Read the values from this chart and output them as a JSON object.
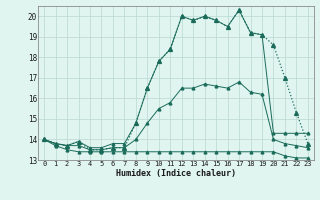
{
  "xlabel": "Humidex (Indice chaleur)",
  "x_hours": [
    0,
    1,
    2,
    3,
    4,
    5,
    6,
    7,
    8,
    9,
    10,
    11,
    12,
    13,
    14,
    15,
    16,
    17,
    18,
    19,
    20,
    21,
    22,
    23
  ],
  "main_line": [
    14.0,
    13.8,
    13.7,
    13.9,
    13.5,
    13.5,
    13.6,
    13.6,
    14.8,
    16.5,
    17.8,
    18.4,
    20.0,
    19.8,
    20.0,
    19.8,
    19.5,
    20.3,
    19.2,
    19.1,
    18.6,
    17.0,
    15.3,
    13.8
  ],
  "min_line": [
    14.0,
    13.7,
    13.5,
    13.4,
    13.4,
    13.4,
    13.4,
    13.4,
    13.4,
    13.4,
    13.4,
    13.4,
    13.4,
    13.4,
    13.4,
    13.4,
    13.4,
    13.4,
    13.4,
    13.4,
    13.4,
    13.2,
    13.1,
    13.1
  ],
  "max_line": [
    14.0,
    13.8,
    13.7,
    13.9,
    13.6,
    13.6,
    13.8,
    13.8,
    14.8,
    16.5,
    17.8,
    18.4,
    20.0,
    19.8,
    20.0,
    19.8,
    19.5,
    20.3,
    19.2,
    19.1,
    14.3,
    14.3,
    14.3,
    14.3
  ],
  "avg_line": [
    14.0,
    13.8,
    13.7,
    13.7,
    13.5,
    13.5,
    13.6,
    13.6,
    14.0,
    14.8,
    15.5,
    15.8,
    16.5,
    16.5,
    16.7,
    16.6,
    16.5,
    16.8,
    16.3,
    16.2,
    14.0,
    13.8,
    13.7,
    13.6
  ],
  "line_color": "#1a6b5a",
  "bg_color": "#e0f5f0",
  "grid_color": "#b8d8d0",
  "ylim": [
    13.0,
    20.5
  ],
  "yticks": [
    13,
    14,
    15,
    16,
    17,
    18,
    19,
    20
  ],
  "xticks": [
    0,
    1,
    2,
    3,
    4,
    5,
    6,
    7,
    8,
    9,
    10,
    11,
    12,
    13,
    14,
    15,
    16,
    17,
    18,
    19,
    20,
    21,
    22,
    23
  ]
}
